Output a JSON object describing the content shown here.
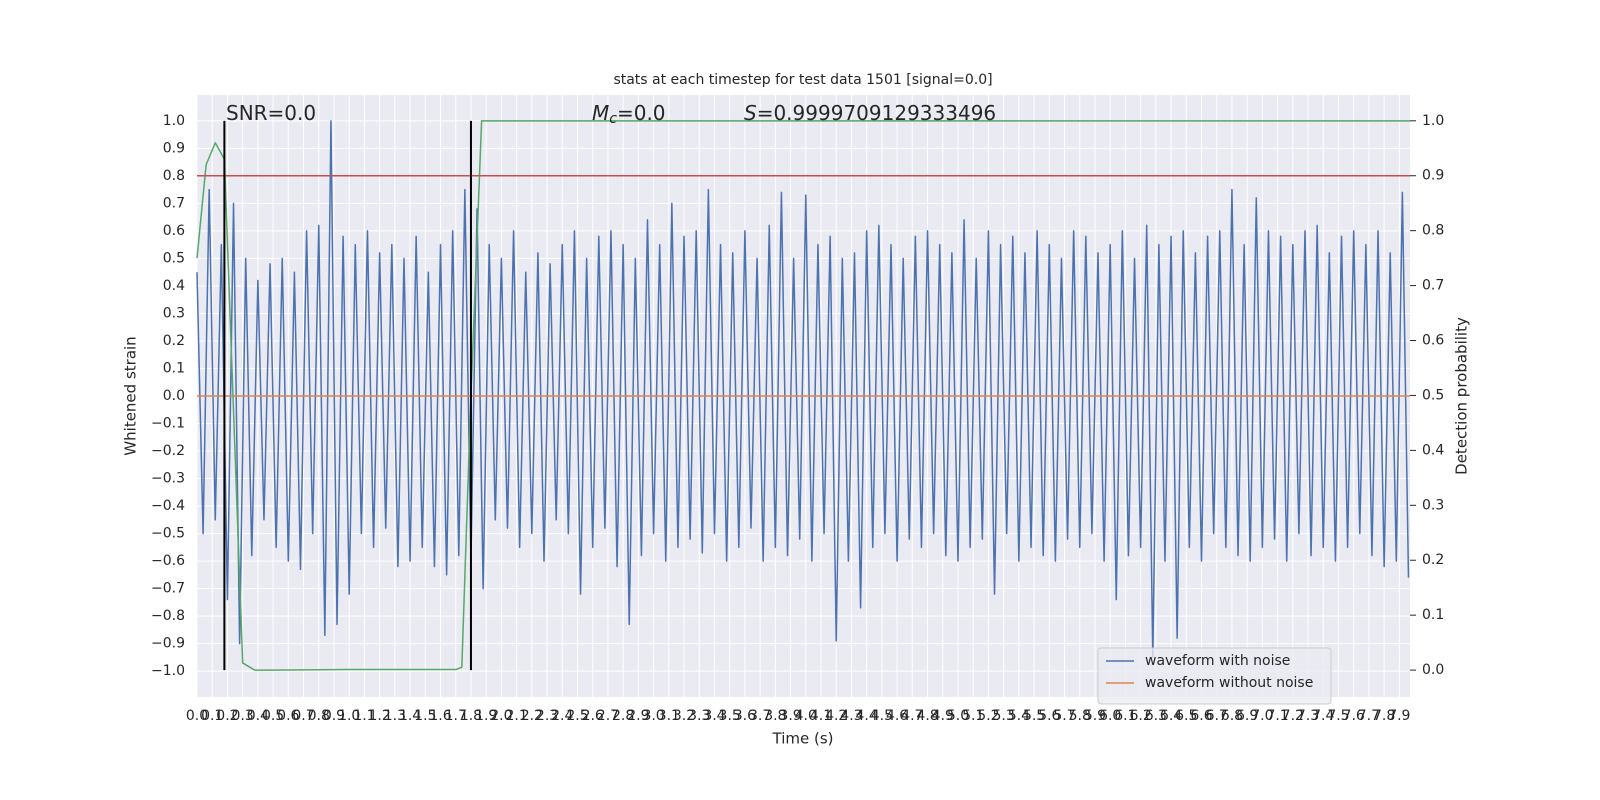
{
  "chart_data": {
    "type": "line",
    "title": "stats at each timestep for test data 1501 [signal=0.0]",
    "xlabel": "Time (s)",
    "ylabel": "Whitened strain",
    "y2label": "Detection probability",
    "xlim": [
      0,
      7.97
    ],
    "ylim": [
      -1.094,
      1.094
    ],
    "y2lim": [
      -0.049,
      1.047
    ],
    "grid": true,
    "legend": "lower right",
    "xticks": [
      {
        "value": 0,
        "label": "0.0"
      },
      0.1,
      0.2,
      0.3,
      0.4,
      0.5,
      0.6,
      0.7,
      0.8,
      0.9,
      {
        "value": 1,
        "label": "1.0"
      },
      1.1,
      1.2,
      1.3,
      1.4,
      1.5,
      1.6,
      1.7,
      1.8,
      1.9,
      {
        "value": 2,
        "label": "2.0"
      },
      2.1,
      2.2,
      2.3,
      2.4,
      2.5,
      2.6,
      2.7,
      2.8,
      2.9,
      {
        "value": 3,
        "label": "3.0"
      },
      3.1,
      3.2,
      3.3,
      3.4,
      3.5,
      3.6,
      3.7,
      3.8,
      3.9,
      {
        "value": 4,
        "label": "4.0"
      },
      4.1,
      4.2,
      4.3,
      4.4,
      4.5,
      4.6,
      4.7,
      4.8,
      4.9,
      {
        "value": 5,
        "label": "5.0"
      },
      5.1,
      5.2,
      5.3,
      5.4,
      5.5,
      5.6,
      5.7,
      5.8,
      5.9,
      {
        "value": 6,
        "label": "6.0"
      },
      6.1,
      6.2,
      6.3,
      6.4,
      6.5,
      6.6,
      6.7,
      6.8,
      6.9,
      {
        "value": 7,
        "label": "7.0"
      },
      7.1,
      7.2,
      7.3,
      7.4,
      7.5,
      7.6,
      7.7,
      7.8,
      7.9
    ],
    "yticks": [
      {
        "value": -1,
        "label": "−1.0"
      },
      {
        "value": -0.9,
        "label": "−0.9"
      },
      {
        "value": -0.8,
        "label": "−0.8"
      },
      {
        "value": -0.7,
        "label": "−0.7"
      },
      {
        "value": -0.6,
        "label": "−0.6"
      },
      {
        "value": -0.5,
        "label": "−0.5"
      },
      {
        "value": -0.4,
        "label": "−0.4"
      },
      {
        "value": -0.3,
        "label": "−0.3"
      },
      {
        "value": -0.2,
        "label": "−0.2"
      },
      {
        "value": -0.1,
        "label": "−0.1"
      },
      {
        "value": 0,
        "label": "0.0"
      },
      0.1,
      0.2,
      0.3,
      0.4,
      0.5,
      0.6,
      0.7,
      0.8,
      0.9,
      {
        "value": 1,
        "label": "1.0"
      }
    ],
    "y2ticks": [
      {
        "value": 0,
        "label": "0.0"
      },
      0.1,
      0.2,
      0.3,
      0.4,
      0.5,
      0.6,
      0.7,
      0.8,
      0.9,
      {
        "value": 1,
        "label": "1.0"
      }
    ],
    "annotations": [
      {
        "text": "SNR=0.0"
      },
      {
        "symbol": "M",
        "subscript": "c",
        "text": "=0.0"
      },
      {
        "symbol": "S",
        "text": "=0.9999709129333496"
      }
    ],
    "threshold": {
      "value": 0.9,
      "axis": "y2",
      "color": "#c44e52"
    },
    "vlines": {
      "x": [
        0.18,
        1.8
      ],
      "ymin": 0,
      "ymax": 1,
      "axis": "y2",
      "color": "#000000"
    },
    "series": [
      {
        "name": "waveform with noise",
        "color": "#4c72b0",
        "x": [
          0,
          0.04,
          0.08,
          0.12,
          0.16,
          0.2,
          0.24,
          0.28,
          0.32,
          0.36,
          0.4,
          0.44,
          0.48,
          0.52,
          0.56,
          0.6,
          0.64,
          0.68,
          0.72,
          0.76,
          0.8,
          0.84,
          0.88,
          0.92,
          0.96,
          1,
          1.04,
          1.08,
          1.12,
          1.16,
          1.2,
          1.24,
          1.28,
          1.32,
          1.36,
          1.4,
          1.44,
          1.48,
          1.52,
          1.56,
          1.6,
          1.64,
          1.68,
          1.72,
          1.76,
          1.8,
          1.84,
          1.88,
          1.92,
          1.96,
          2,
          2.04,
          2.08,
          2.12,
          2.16,
          2.2,
          2.24,
          2.28,
          2.32,
          2.36,
          2.4,
          2.44,
          2.48,
          2.52,
          2.56,
          2.6,
          2.64,
          2.68,
          2.72,
          2.76,
          2.8,
          2.84,
          2.88,
          2.92,
          2.96,
          3,
          3.04,
          3.08,
          3.12,
          3.16,
          3.2,
          3.24,
          3.28,
          3.32,
          3.36,
          3.4,
          3.44,
          3.48,
          3.52,
          3.56,
          3.6,
          3.64,
          3.68,
          3.72,
          3.76,
          3.8,
          3.84,
          3.88,
          3.92,
          3.96,
          4,
          4.04,
          4.08,
          4.12,
          4.16,
          4.2,
          4.24,
          4.28,
          4.32,
          4.36,
          4.4,
          4.44,
          4.48,
          4.52,
          4.56,
          4.6,
          4.64,
          4.68,
          4.72,
          4.76,
          4.8,
          4.84,
          4.88,
          4.92,
          4.96,
          5,
          5.04,
          5.08,
          5.12,
          5.16,
          5.2,
          5.24,
          5.28,
          5.32,
          5.36,
          5.4,
          5.44,
          5.48,
          5.52,
          5.56,
          5.6,
          5.64,
          5.68,
          5.72,
          5.76,
          5.8,
          5.84,
          5.88,
          5.92,
          5.96,
          6,
          6.04,
          6.08,
          6.12,
          6.16,
          6.2,
          6.24,
          6.28,
          6.32,
          6.36,
          6.4,
          6.44,
          6.48,
          6.52,
          6.56,
          6.6,
          6.64,
          6.68,
          6.72,
          6.76,
          6.8,
          6.84,
          6.88,
          6.92,
          6.96,
          7,
          7.04,
          7.08,
          7.12,
          7.16,
          7.2,
          7.24,
          7.28,
          7.32,
          7.36,
          7.4,
          7.44,
          7.48,
          7.52,
          7.56,
          7.6,
          7.64,
          7.68,
          7.72,
          7.76,
          7.8,
          7.84,
          7.88,
          7.92,
          7.96
        ],
        "values": [
          0.45,
          -0.5,
          0.75,
          -0.45,
          0.55,
          -0.74,
          0.7,
          -0.9,
          0.5,
          -0.58,
          0.42,
          -0.45,
          0.48,
          -0.55,
          0.5,
          -0.6,
          0.45,
          -0.63,
          0.6,
          -0.5,
          0.62,
          -0.87,
          1.0,
          -0.83,
          0.58,
          -0.72,
          0.55,
          -0.5,
          0.6,
          -0.55,
          0.52,
          -0.48,
          0.55,
          -0.62,
          0.5,
          -0.6,
          0.58,
          -0.55,
          0.45,
          -0.62,
          0.55,
          -0.65,
          0.6,
          -0.58,
          0.75,
          -0.6,
          0.68,
          -0.7,
          0.55,
          -0.45,
          0.5,
          -0.48,
          0.6,
          -0.55,
          0.45,
          -0.5,
          0.52,
          -0.6,
          0.48,
          -0.45,
          0.55,
          -0.5,
          0.6,
          -0.72,
          0.5,
          -0.55,
          0.58,
          -0.48,
          0.6,
          -0.62,
          0.55,
          -0.83,
          0.5,
          -0.58,
          0.64,
          -0.5,
          0.55,
          -0.6,
          0.7,
          -0.55,
          0.58,
          -0.52,
          0.6,
          -0.57,
          0.75,
          -0.5,
          0.55,
          -0.6,
          0.52,
          -0.55,
          0.6,
          -0.48,
          0.5,
          -0.6,
          0.62,
          -0.55,
          0.74,
          -0.58,
          0.5,
          -0.52,
          0.73,
          -0.6,
          0.55,
          -0.5,
          0.58,
          -0.89,
          0.5,
          -0.6,
          0.52,
          -0.77,
          0.6,
          -0.55,
          0.62,
          -0.5,
          0.55,
          -0.6,
          0.5,
          -0.52,
          0.58,
          -0.55,
          0.6,
          -0.5,
          0.55,
          -0.58,
          0.52,
          -0.6,
          0.64,
          -0.55,
          0.5,
          -0.52,
          0.6,
          -0.72,
          0.55,
          -0.5,
          0.58,
          -0.6,
          0.52,
          -0.55,
          0.6,
          -0.58,
          0.55,
          -0.6,
          0.5,
          -0.52,
          0.6,
          -0.55,
          0.58,
          -0.5,
          0.52,
          -0.6,
          0.55,
          -0.74,
          0.6,
          -0.58,
          0.5,
          -0.55,
          0.62,
          -0.95,
          0.55,
          -0.6,
          0.58,
          -0.88,
          0.6,
          -0.55,
          0.52,
          -0.6,
          0.58,
          -0.5,
          0.6,
          -0.55,
          0.75,
          -0.58,
          0.55,
          -0.6,
          0.72,
          -0.55,
          0.6,
          -0.52,
          0.58,
          -0.6,
          0.55,
          -0.5,
          0.6,
          -0.58,
          0.62,
          -0.55,
          0.52,
          -0.6,
          0.58,
          -0.55,
          0.6,
          -0.5,
          0.55,
          -0.58,
          0.6,
          -0.62,
          0.52,
          -0.6,
          0.74,
          -0.66
        ]
      },
      {
        "name": "waveform without noise",
        "color": "#dd8452",
        "x": [
          0,
          7.97
        ],
        "values": [
          0,
          0
        ]
      },
      {
        "color": "#55a868",
        "axis": "y2",
        "x": [
          0,
          0.06,
          0.12,
          0.18,
          0.3,
          0.38,
          0.5,
          1.0,
          1.5,
          1.7,
          1.74,
          1.8,
          1.87,
          2.0,
          7.97
        ],
        "values": [
          0.75,
          0.92,
          0.96,
          0.93,
          0.013,
          0,
          0,
          0.001,
          0.001,
          0.001,
          0.005,
          0.5,
          1.0,
          1.0,
          1.0
        ]
      }
    ]
  }
}
